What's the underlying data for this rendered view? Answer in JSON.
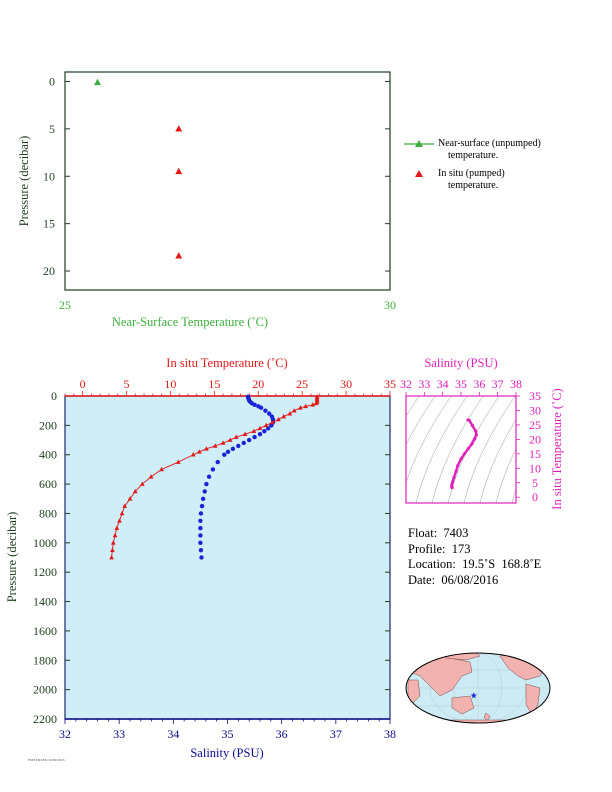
{
  "colors": {
    "near_surface": "#3dae3d",
    "in_situ_temp": "#e11919",
    "salinity": "#1a23d8",
    "salinity_inset": "#e020b8",
    "plot_bg": "#cfeef7",
    "axis_dark": "#1f3d1f",
    "navy": "#0a0a8c",
    "land": "#f2b2b0",
    "ocean": "#cdebf5"
  },
  "info": {
    "float_label": "Float:",
    "float_value": "7403",
    "profile_label": "Profile:",
    "profile_value": "173",
    "location_label": "Location:",
    "location_value": "19.5˚S  168.8˚E",
    "date_label": "Date:",
    "date_value": "06/08/2016"
  },
  "footnote": "FMSTRSEK 6/08/2016",
  "chart_data": [
    {
      "type": "scatter",
      "id": "near_surface_panel",
      "xlabel": "Near-Surface Temperature (˚C)",
      "ylabel": "Pressure (decibar)",
      "xlim": [
        25,
        30
      ],
      "ylim": [
        22,
        -1
      ],
      "x_ticks": [
        25,
        30
      ],
      "y_ticks": [
        0,
        5,
        10,
        15,
        20
      ],
      "series": [
        {
          "name": "Near-surface (unpumped) temperature.",
          "marker": "triangle",
          "color": "#3dae3d",
          "points": [
            [
              25.5,
              0.1
            ]
          ]
        },
        {
          "name": "In situ (pumped) temperature.",
          "marker": "triangle",
          "color": "#e11919",
          "points": [
            [
              26.75,
              5.0
            ],
            [
              26.75,
              9.5
            ],
            [
              26.75,
              18.4
            ]
          ]
        }
      ],
      "legend": {
        "placement": "right",
        "entries": [
          {
            "line1": "Near-surface (unpumped)",
            "line2": "temperature."
          },
          {
            "line1": "In situ (pumped)",
            "line2": "temperature."
          }
        ]
      }
    },
    {
      "type": "line",
      "id": "profile_panel",
      "top_xlabel": "In situ Temperature (˚C)",
      "bottom_xlabel": "Salinity (PSU)",
      "ylabel": "Pressure (decibar)",
      "temp_xlim": [
        -2,
        35
      ],
      "temp_ticks": [
        0,
        5,
        10,
        15,
        20,
        25,
        30,
        35
      ],
      "sal_xlim": [
        32,
        38
      ],
      "sal_ticks": [
        32,
        33,
        34,
        35,
        36,
        37,
        38
      ],
      "ylim": [
        2200,
        0
      ],
      "y_ticks": [
        0,
        200,
        400,
        600,
        800,
        1000,
        1200,
        1400,
        1600,
        1800,
        2000,
        2200
      ],
      "grid": false,
      "temperature": {
        "pressure": [
          5,
          10,
          20,
          30,
          40,
          50,
          60,
          70,
          80,
          100,
          120,
          140,
          160,
          180,
          200,
          220,
          240,
          260,
          280,
          300,
          320,
          340,
          360,
          380,
          400,
          450,
          500,
          550,
          600,
          650,
          700,
          750,
          800,
          850,
          900,
          950,
          1000,
          1050,
          1100
        ],
        "values": [
          26.7,
          26.7,
          26.7,
          26.7,
          26.7,
          26.6,
          26.2,
          25.4,
          24.8,
          24.1,
          23.6,
          22.9,
          22.3,
          21.6,
          20.9,
          20.2,
          19.5,
          18.5,
          17.5,
          16.8,
          16.0,
          15.1,
          14.1,
          13.3,
          12.6,
          10.9,
          9.0,
          7.8,
          6.8,
          6.0,
          5.4,
          4.8,
          4.5,
          4.2,
          3.9,
          3.7,
          3.5,
          3.4,
          3.3
        ]
      },
      "salinity": {
        "pressure": [
          5,
          10,
          20,
          30,
          40,
          50,
          60,
          70,
          80,
          100,
          120,
          140,
          160,
          180,
          200,
          220,
          240,
          260,
          280,
          300,
          320,
          340,
          360,
          380,
          400,
          450,
          500,
          550,
          600,
          650,
          700,
          750,
          800,
          850,
          900,
          950,
          1000,
          1050,
          1100
        ],
        "values": [
          35.38,
          35.38,
          35.39,
          35.4,
          35.42,
          35.45,
          35.5,
          35.57,
          35.62,
          35.7,
          35.77,
          35.82,
          35.84,
          35.84,
          35.81,
          35.75,
          35.68,
          35.6,
          35.5,
          35.4,
          35.3,
          35.2,
          35.1,
          35.01,
          34.94,
          34.82,
          34.73,
          34.66,
          34.61,
          34.58,
          34.55,
          34.53,
          34.51,
          34.5,
          34.5,
          34.5,
          34.5,
          34.51,
          34.52
        ]
      }
    },
    {
      "type": "line",
      "id": "ts_inset",
      "top_xlabel": "Salinity (PSU)",
      "right_ylabel": "In situ Temperature (˚C)",
      "xlim": [
        32,
        38
      ],
      "x_ticks": [
        32,
        33,
        34,
        35,
        36,
        37,
        38
      ],
      "ylim": [
        -2,
        35
      ],
      "y_ticks": [
        0,
        5,
        10,
        15,
        20,
        25,
        30,
        35
      ],
      "series": [
        {
          "salinity": [
            35.38,
            35.45,
            35.62,
            35.8,
            35.84,
            35.75,
            35.6,
            35.4,
            35.2,
            35.01,
            34.82,
            34.73,
            34.61,
            34.55,
            34.51,
            34.5,
            34.5,
            34.52
          ],
          "temperature": [
            26.7,
            26.6,
            24.8,
            22.9,
            21.6,
            20.2,
            18.5,
            16.8,
            15.1,
            13.3,
            10.9,
            9.0,
            6.8,
            5.4,
            4.5,
            3.9,
            3.5,
            3.3
          ]
        }
      ]
    }
  ],
  "map": {
    "marker_longitude": 168.8,
    "marker_latitude": -19.5
  }
}
